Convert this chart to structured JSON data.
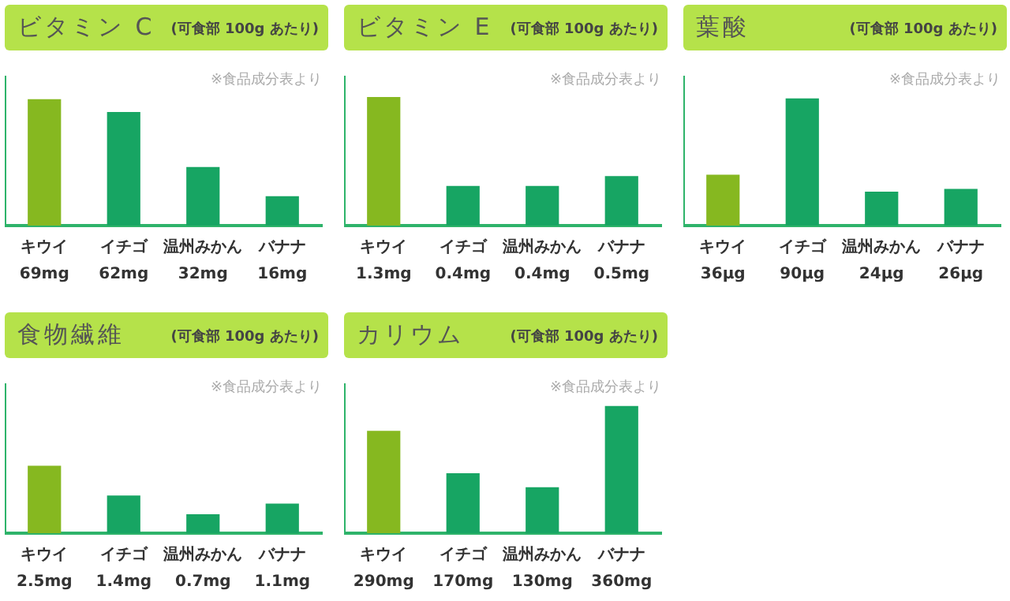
{
  "chart_data": [
    {
      "type": "bar",
      "title": "ビタミン C",
      "subtitle": "(可食部 100g あたり)",
      "annotations": [
        "※食品成分表より"
      ],
      "categories": [
        "キウイ",
        "イチゴ",
        "温州みかん",
        "バナナ"
      ],
      "values": [
        69,
        62,
        32,
        16
      ],
      "value_labels": [
        "69mg",
        "62mg",
        "32mg",
        "16mg"
      ],
      "colors": [
        "#86b820",
        "#17a563",
        "#17a563",
        "#17a563"
      ],
      "ylim": [
        0,
        81
      ],
      "tick_labels": "x",
      "grid": false,
      "legend": false
    },
    {
      "type": "bar",
      "title": "ビタミン E",
      "subtitle": "(可食部 100g あたり)",
      "annotations": [
        "※食品成分表より"
      ],
      "categories": [
        "キウイ",
        "イチゴ",
        "温州みかん",
        "バナナ"
      ],
      "values": [
        1.3,
        0.4,
        0.4,
        0.5
      ],
      "value_labels": [
        "1.3mg",
        "0.4mg",
        "0.4mg",
        "0.5mg"
      ],
      "colors": [
        "#86b820",
        "#17a563",
        "#17a563",
        "#17a563"
      ],
      "ylim": [
        0,
        1.5
      ],
      "tick_labels": "x",
      "grid": false,
      "legend": false
    },
    {
      "type": "bar",
      "title": "葉酸",
      "subtitle": "(可食部 100g あたり)",
      "annotations": [
        "※食品成分表より"
      ],
      "categories": [
        "キウイ",
        "イチゴ",
        "温州みかん",
        "バナナ"
      ],
      "values": [
        36,
        90,
        24,
        26
      ],
      "value_labels": [
        "36μg",
        "90μg",
        "24μg",
        "26μg"
      ],
      "colors": [
        "#86b820",
        "#17a563",
        "#17a563",
        "#17a563"
      ],
      "ylim": [
        0,
        105
      ],
      "tick_labels": "x",
      "grid": false,
      "legend": false
    },
    {
      "type": "bar",
      "title": "食物繊維",
      "subtitle": "(可食部 100g あたり)",
      "annotations": [
        "※食品成分表より"
      ],
      "categories": [
        "キウイ",
        "イチゴ",
        "温州みかん",
        "バナナ"
      ],
      "values": [
        2.5,
        1.4,
        0.7,
        1.1
      ],
      "value_labels": [
        "2.5mg",
        "1.4mg",
        "0.7mg",
        "1.1mg"
      ],
      "colors": [
        "#86b820",
        "#17a563",
        "#17a563",
        "#17a563"
      ],
      "ylim": [
        0,
        5.5
      ],
      "tick_labels": "x",
      "grid": false,
      "legend": false
    },
    {
      "type": "bar",
      "title": "カリウム",
      "subtitle": "(可食部 100g あたり)",
      "annotations": [
        "※食品成分表より"
      ],
      "categories": [
        "キウイ",
        "イチゴ",
        "温州みかん",
        "バナナ"
      ],
      "values": [
        290,
        170,
        130,
        360
      ],
      "value_labels": [
        "290mg",
        "170mg",
        "130mg",
        "360mg"
      ],
      "colors": [
        "#86b820",
        "#17a563",
        "#17a563",
        "#17a563"
      ],
      "ylim": [
        0,
        420
      ],
      "tick_labels": "x",
      "grid": false,
      "legend": false
    }
  ]
}
